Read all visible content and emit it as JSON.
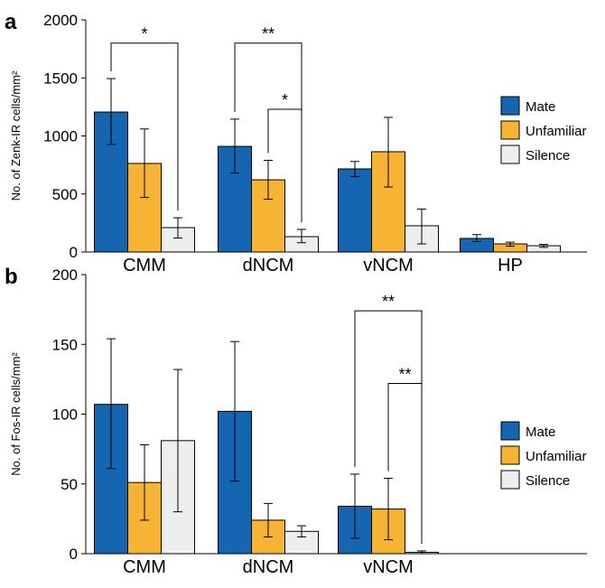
{
  "chart_data": [
    {
      "type": "bar",
      "panel_label": "a",
      "ylabel": "No. of Zenk-IR cells/mm²",
      "ylim": [
        0,
        2000
      ],
      "yticks": [
        0,
        500,
        1000,
        1500,
        2000
      ],
      "categories": [
        "CMM",
        "dNCM",
        "vNCM",
        "HP"
      ],
      "series": [
        {
          "name": "Mate",
          "color": "#1565b0",
          "values": [
            1206,
            910,
            716,
            117
          ],
          "err_low": [
            926,
            680,
            650,
            90
          ],
          "err_high": [
            1494,
            1145,
            780,
            150
          ]
        },
        {
          "name": "Unfamiliar",
          "color": "#f7b334",
          "values": [
            763,
            622,
            864,
            70
          ],
          "err_low": [
            470,
            455,
            560,
            50
          ],
          "err_high": [
            1060,
            790,
            1160,
            85
          ]
        },
        {
          "name": "Silence",
          "color": "#eeeeee",
          "values": [
            210,
            132,
            226,
            54
          ],
          "err_low": [
            120,
            80,
            70,
            40
          ],
          "err_high": [
            295,
            195,
            370,
            65
          ]
        }
      ],
      "significance": [
        {
          "group": 0,
          "from": 0,
          "to": 2,
          "label": "*",
          "y": 1800
        },
        {
          "group": 1,
          "from": 0,
          "to": 2,
          "label": "**",
          "y": 1800
        },
        {
          "group": 1,
          "from": 1,
          "to": 2,
          "label": "*",
          "y": 1230
        }
      ]
    },
    {
      "type": "bar",
      "panel_label": "b",
      "ylabel": "No. of Fos-IR cells/mm²",
      "ylim": [
        0,
        200
      ],
      "yticks": [
        0,
        50,
        100,
        150,
        200
      ],
      "categories": [
        "CMM",
        "dNCM",
        "vNCM"
      ],
      "series": [
        {
          "name": "Mate",
          "color": "#1565b0",
          "values": [
            107,
            102,
            34
          ],
          "err_low": [
            61,
            52,
            11
          ],
          "err_high": [
            154,
            152,
            57
          ]
        },
        {
          "name": "Unfamiliar",
          "color": "#f7b334",
          "values": [
            51,
            24,
            32
          ],
          "err_low": [
            24,
            12,
            10
          ],
          "err_high": [
            78,
            36,
            54
          ]
        },
        {
          "name": "Silence",
          "color": "#eeeeee",
          "values": [
            81,
            16,
            1
          ],
          "err_low": [
            30,
            12,
            0
          ],
          "err_high": [
            132,
            20,
            2
          ]
        }
      ],
      "significance": [
        {
          "group": 2,
          "from": 0,
          "to": 2,
          "label": "**",
          "y": 174
        },
        {
          "group": 2,
          "from": 1,
          "to": 2,
          "label": "**",
          "y": 122
        }
      ]
    }
  ]
}
